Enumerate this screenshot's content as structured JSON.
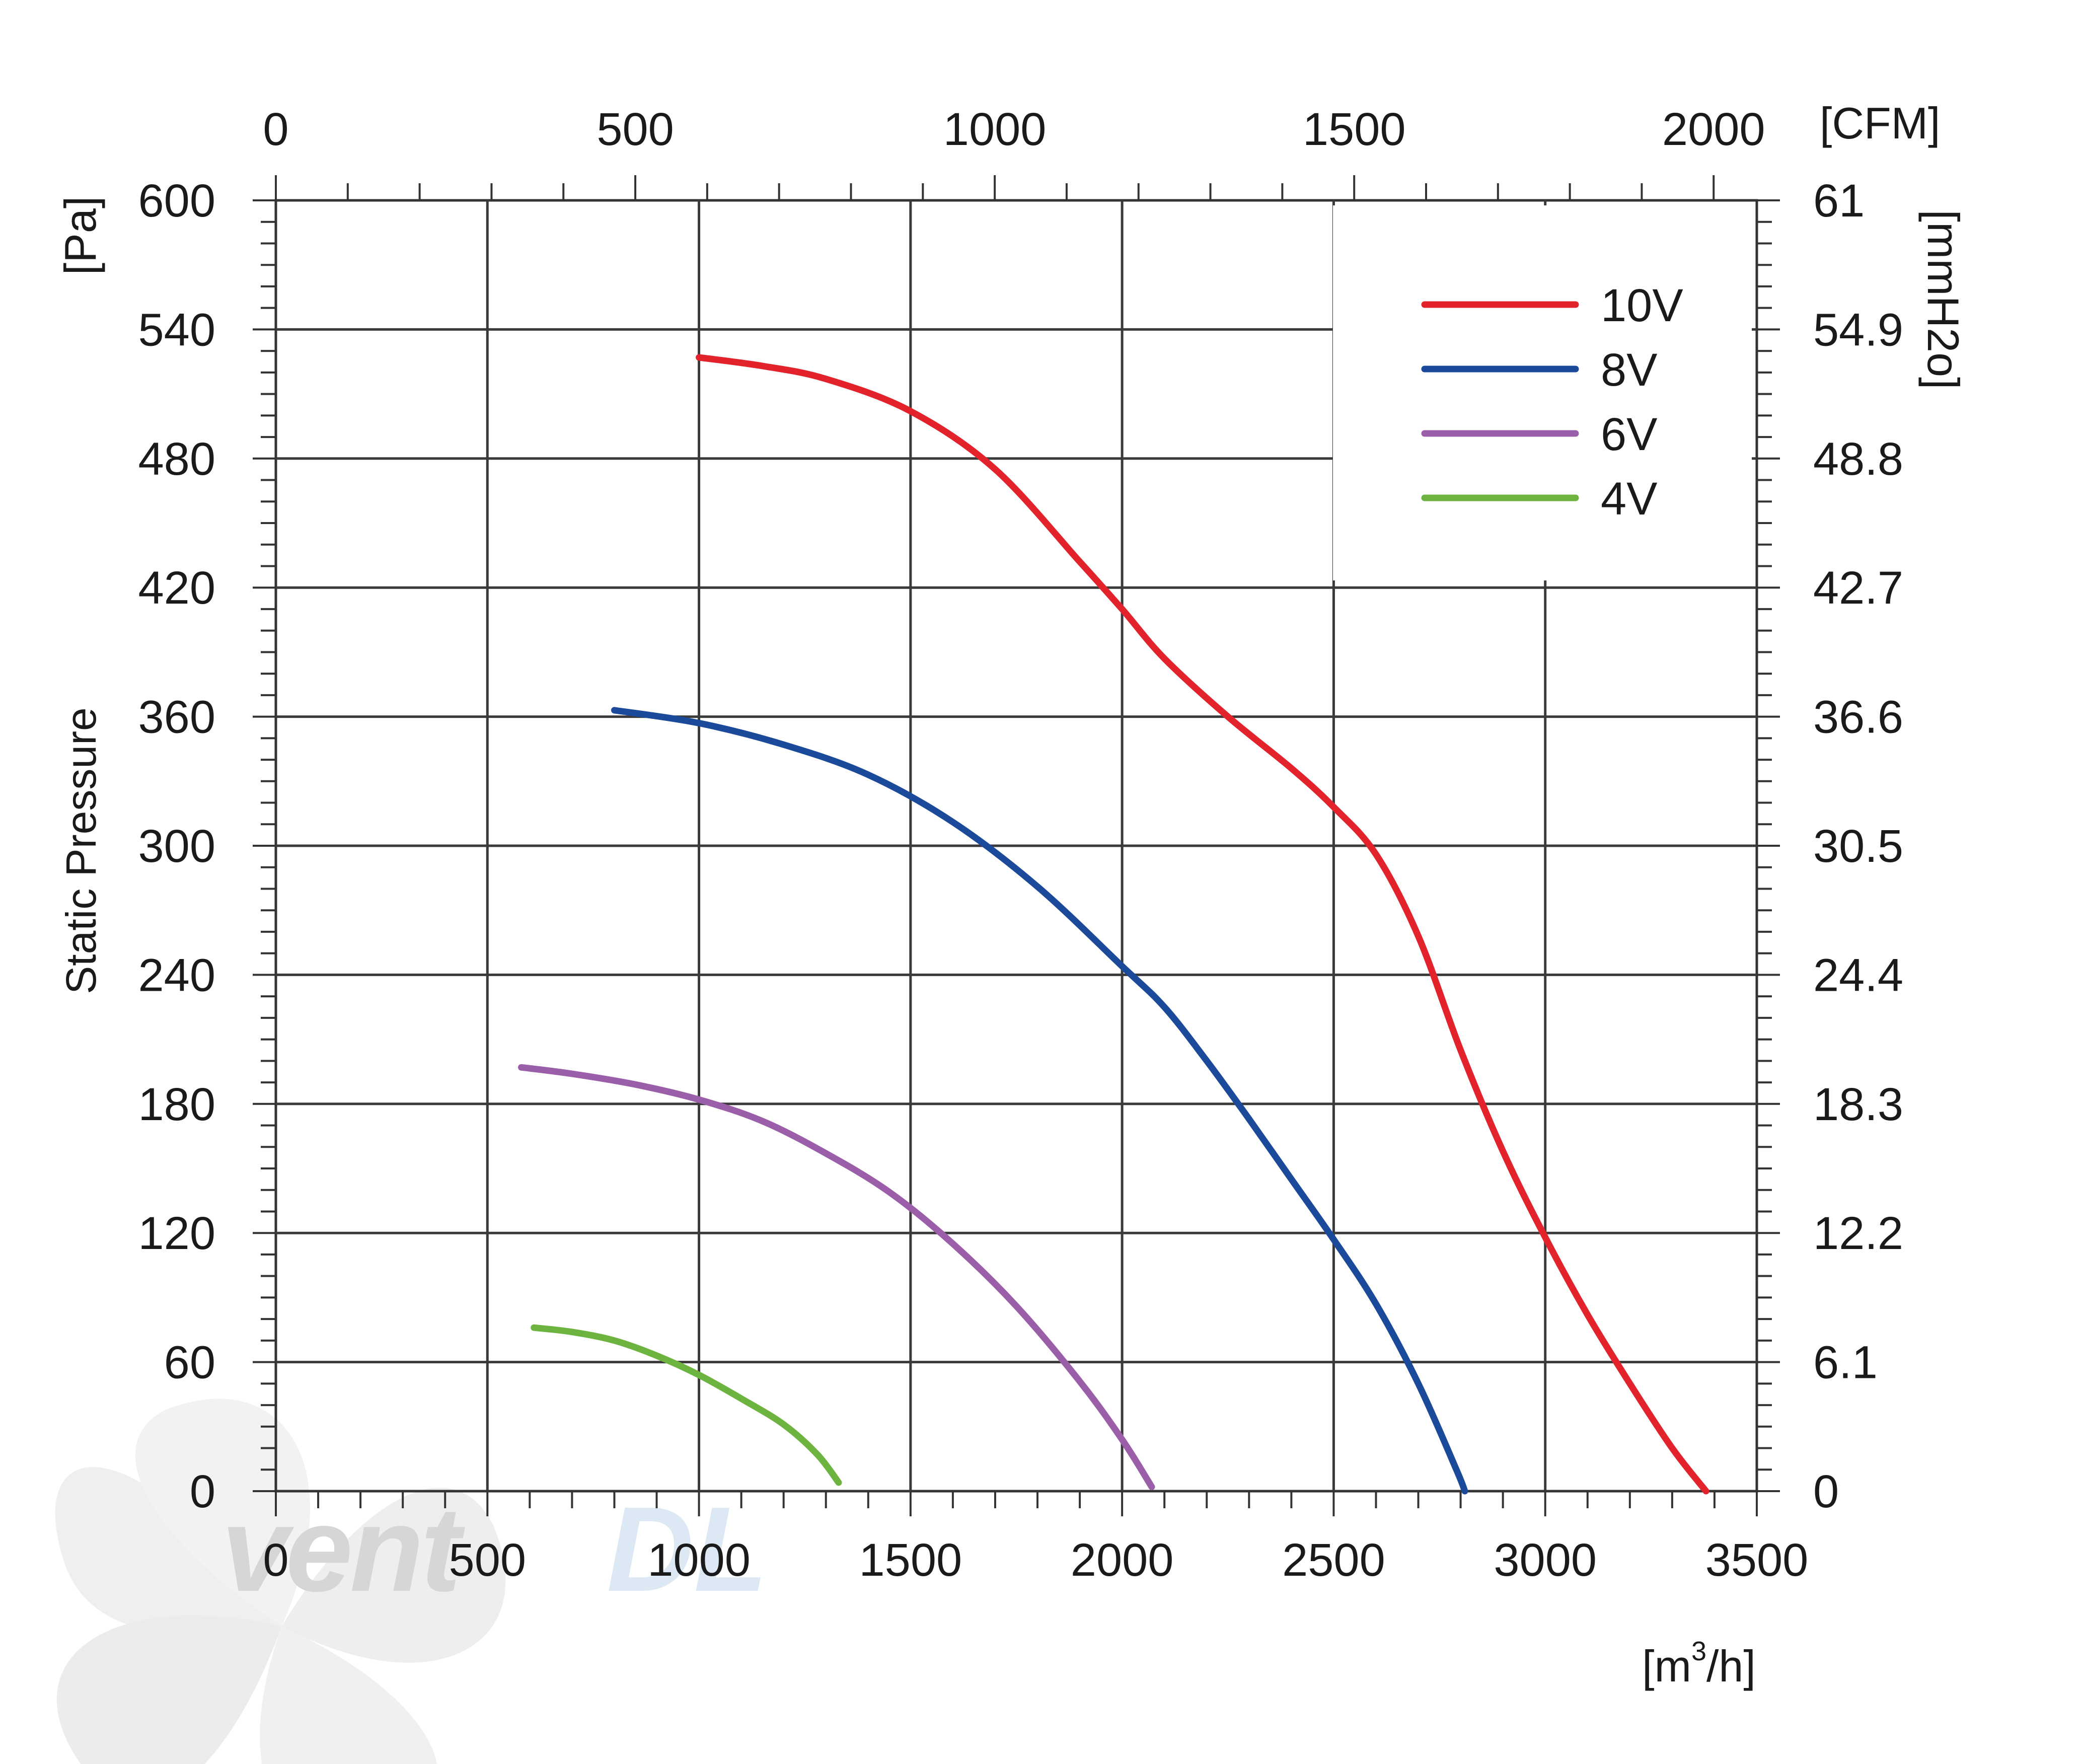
{
  "chart_data": {
    "type": "line",
    "ylabel": "Static Pressure",
    "y_unit": "[Pa]",
    "x_unit": "[m3/h]",
    "x_unit_base": "[m",
    "x_unit_sup": "3",
    "x_unit_tail": "/h]",
    "top_unit": "[CFM]",
    "right_unit": "[mmH2o]",
    "xlim": [
      0,
      3500
    ],
    "ylim": [
      0,
      600
    ],
    "x_ticks": [
      0,
      500,
      1000,
      1500,
      2000,
      2500,
      3000,
      3500
    ],
    "x_tick_labels": [
      "0",
      "500",
      "1000",
      "1500",
      "2000",
      "2500",
      "3000",
      "3500"
    ],
    "y_ticks": [
      0,
      60,
      120,
      180,
      240,
      300,
      360,
      420,
      480,
      540,
      600
    ],
    "y_tick_labels": [
      "0",
      "60",
      "120",
      "180",
      "240",
      "300",
      "360",
      "420",
      "480",
      "540",
      "600"
    ],
    "cfm_ticks": [
      0,
      500,
      1000,
      1500,
      2000
    ],
    "cfm_tick_labels": [
      "0",
      "500",
      "1000",
      "1500",
      "2000"
    ],
    "mmh2o_tick_labels": [
      "0",
      "6.1",
      "12.2",
      "18.3",
      "24.4",
      "30.5",
      "36.6",
      "42.7",
      "48.8",
      "54.9",
      "61"
    ],
    "series": [
      {
        "name": "10V",
        "color": "#e3232c",
        "x": [
          1000,
          1150,
          1300,
          1500,
          1700,
          1900,
          2000,
          2100,
          2250,
          2400,
          2500,
          2600,
          2700,
          2800,
          2900,
          3000,
          3100,
          3200,
          3300,
          3380
        ],
        "y": [
          527,
          523,
          517,
          502,
          475,
          432,
          410,
          387,
          360,
          336,
          318,
          296,
          258,
          205,
          158,
          118,
          82,
          50,
          20,
          0
        ]
      },
      {
        "name": "8V",
        "color": "#1c4a9a",
        "x": [
          800,
          1000,
          1200,
          1400,
          1600,
          1800,
          2000,
          2100,
          2200,
          2300,
          2400,
          2500,
          2600,
          2700,
          2790,
          2810
        ],
        "y": [
          363,
          357,
          347,
          333,
          311,
          281,
          244,
          225,
          200,
          173,
          145,
          117,
          87,
          50,
          10,
          0
        ]
      },
      {
        "name": "6V",
        "color": "#9b5ea8",
        "x": [
          580,
          700,
          850,
          1000,
          1150,
          1300,
          1450,
          1600,
          1750,
          1900,
          2000,
          2070
        ],
        "y": [
          197,
          194,
          189,
          182,
          172,
          157,
          139,
          115,
          86,
          51,
          24,
          2
        ]
      },
      {
        "name": "4V",
        "color": "#6db33f",
        "x": [
          610,
          700,
          800,
          900,
          1000,
          1100,
          1200,
          1280,
          1330
        ],
        "y": [
          76,
          74,
          70,
          63,
          54,
          43,
          31,
          17,
          4
        ]
      }
    ],
    "grid": true,
    "legend_position": "top-right"
  },
  "watermark": {
    "text_main": "vent",
    "text_accent": "DL",
    "color_main": "#cfcfcf",
    "color_accent": "#d6e6f3"
  }
}
